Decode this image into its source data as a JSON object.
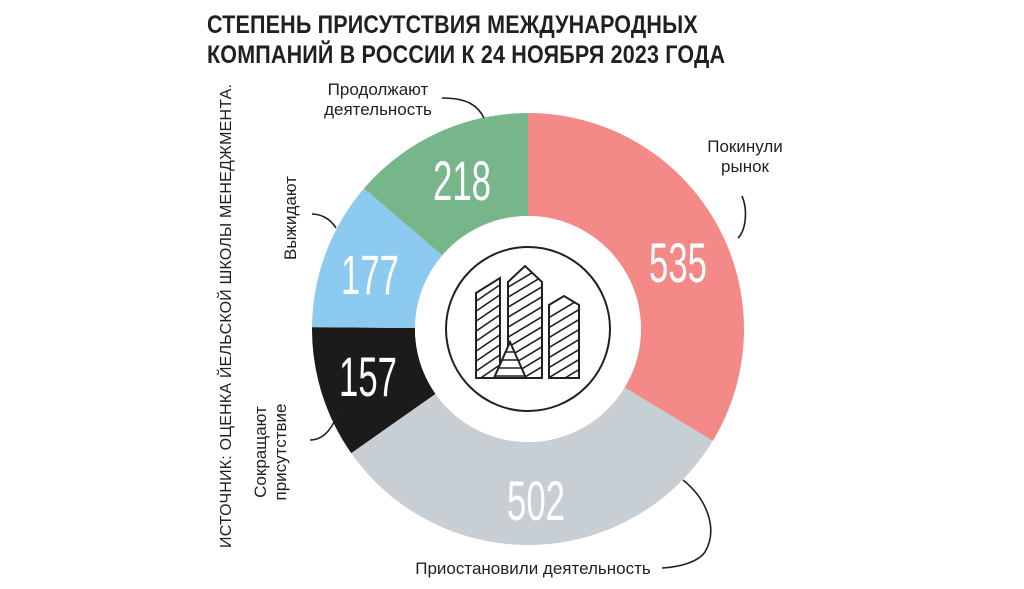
{
  "chart_data": {
    "type": "pie",
    "variant": "donut",
    "title_lines": [
      "СТЕПЕНЬ ПРИСУТСТВИЯ МЕЖДУНАРОДНЫХ",
      "КОМПАНИЙ В РОССИИ К 24 НОЯБРЯ 2023 ГОДА"
    ],
    "source": "ИСТОЧНИК: ОЦЕНКА ЙЕЛЬСКОЙ ШКОЛЫ МЕНЕДЖМЕНТА.",
    "slices": [
      {
        "label_lines": [
          "Покинули",
          "рынок"
        ],
        "value": 535,
        "color": "#f38a88",
        "label_color": "#ffffff"
      },
      {
        "label_lines": [
          "Приостановили деятельность"
        ],
        "value": 502,
        "color": "#c7ced4",
        "label_color": "#231f20"
      },
      {
        "label_lines": [
          "Сокращают",
          "присутствие"
        ],
        "value": 157,
        "color": "#1c1a1b",
        "label_color": "#ffffff"
      },
      {
        "label_lines": [
          "Выжидают"
        ],
        "value": 177,
        "color": "#8ccbef",
        "label_color": "#231f20"
      },
      {
        "label_lines": [
          "Продолжают",
          "деятельность"
        ],
        "value": 218,
        "color": "#77b68a",
        "label_color": "#ffffff"
      }
    ],
    "center_icon": "skyscrapers-icon"
  }
}
